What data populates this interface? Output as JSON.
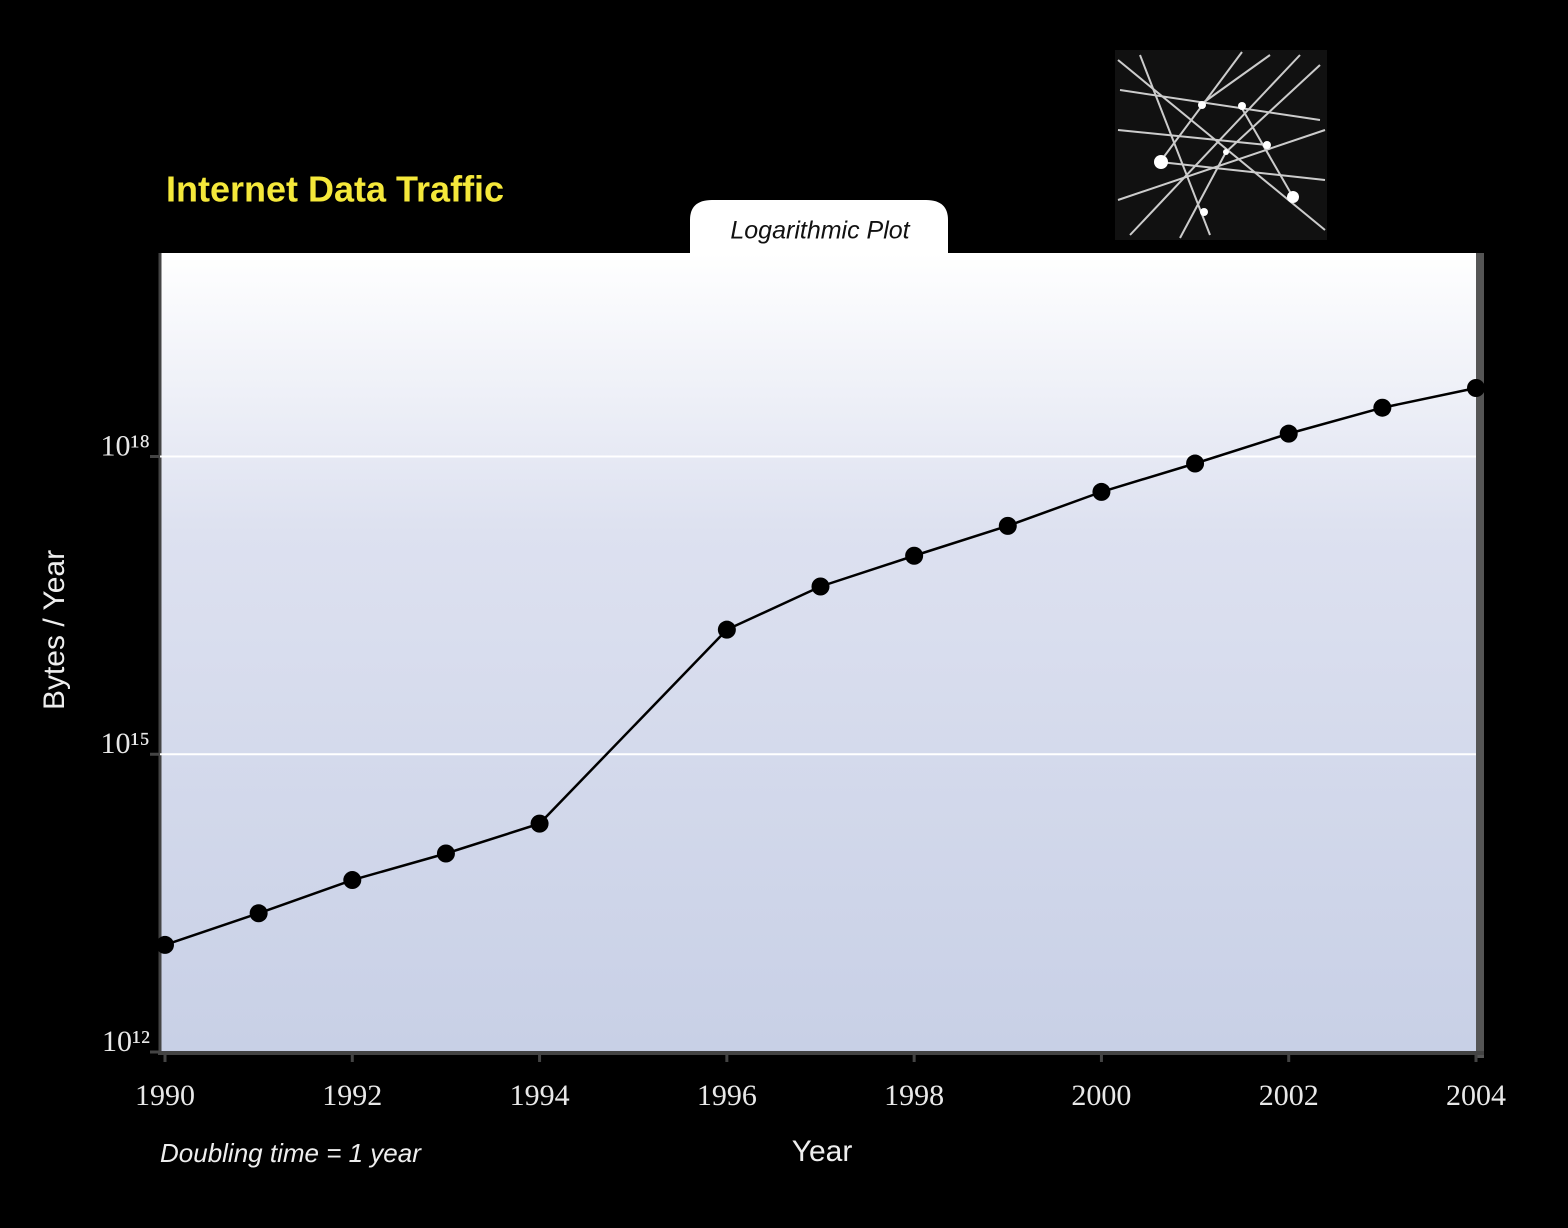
{
  "chart_data": {
    "type": "line",
    "title": "Internet Data Traffic",
    "subtitle": "Logarithmic Plot",
    "xlabel": "Year",
    "ylabel": "Bytes / Year",
    "annotation": "Doubling time = 1 year",
    "x": [
      1990,
      1991,
      1992,
      1993,
      1994,
      1996,
      1997,
      1998,
      1999,
      2000,
      2001,
      2002,
      2003,
      2004
    ],
    "series": [
      {
        "color": "#000000",
        "values": [
          12000000000000.0,
          25000000000000.0,
          54000000000000.0,
          100000000000000.0,
          200000000000000.0,
          1.8e+16,
          4.9e+16,
          1e+17,
          2e+17,
          4.4e+17,
          8.5e+17,
          1.7e+18,
          3.1e+18,
          4.9e+18
        ]
      }
    ],
    "xlim": [
      1990,
      2004
    ],
    "xticks": [
      1990,
      1992,
      1994,
      1996,
      1998,
      2000,
      2002,
      2004
    ],
    "ylim": [
      1000000000000.0,
      1e+20
    ],
    "yticks": [
      {
        "value": 1000000000000.0,
        "label": "10¹²"
      },
      {
        "value": 1000000000000000.0,
        "label": "10¹⁵"
      },
      {
        "value": 1e+18,
        "label": "10¹⁸"
      }
    ],
    "log_scale": true,
    "grid": true
  }
}
